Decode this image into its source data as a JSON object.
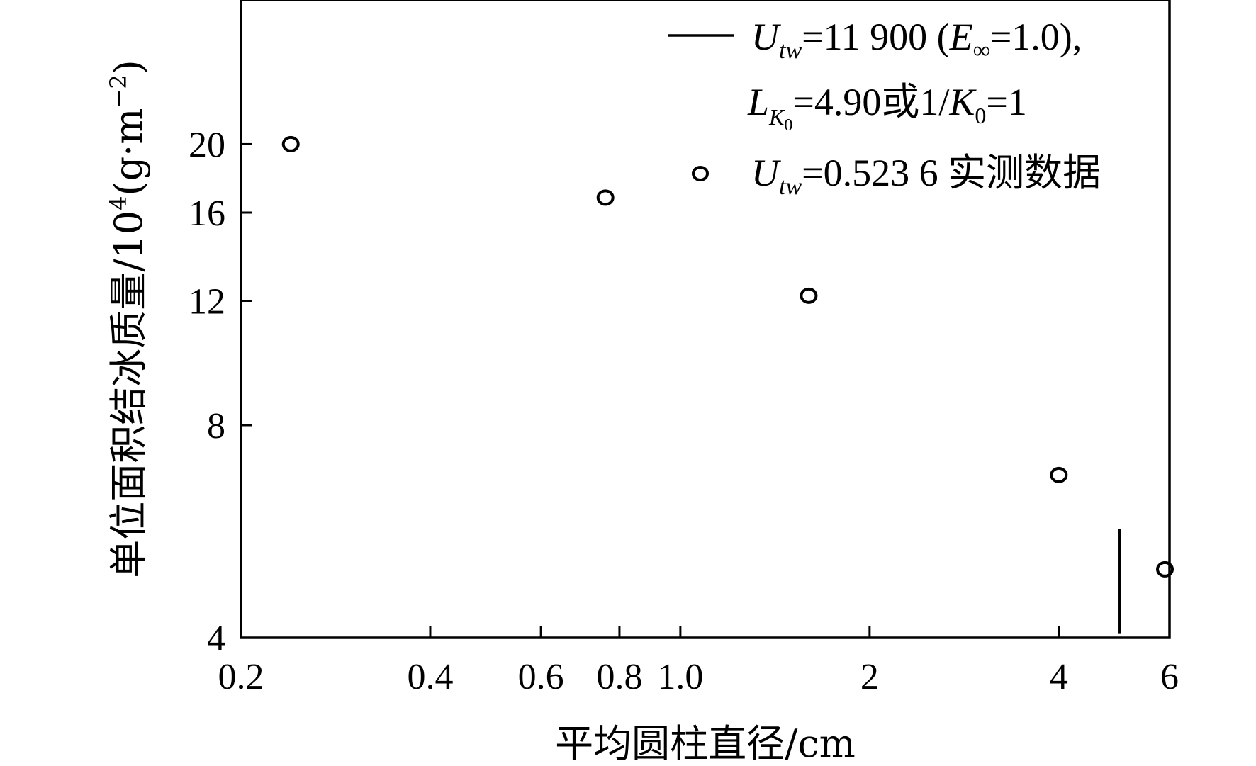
{
  "chart_data": {
    "type": "scatter",
    "x_scale": "log",
    "y_scale": "log",
    "xlim": [
      0.2,
      6
    ],
    "ylim": [
      4,
      32
    ],
    "xlabel": "平均圆柱直径/cm",
    "ylabel_main": "单位面积结冰质量/10",
    "ylabel_exp": "4",
    "ylabel_unit": "(g·m",
    "ylabel_unit_exp": "−2",
    "ylabel_close": ")",
    "x_ticks": [
      {
        "value": 0.2,
        "label": "0.2"
      },
      {
        "value": 0.4,
        "label": "0.4"
      },
      {
        "value": 0.6,
        "label": "0.6"
      },
      {
        "value": 0.8,
        "label": "0.8"
      },
      {
        "value": 1.0,
        "label": "1.0"
      },
      {
        "value": 2,
        "label": "2"
      },
      {
        "value": 4,
        "label": "4"
      },
      {
        "value": 6,
        "label": "6"
      }
    ],
    "y_ticks": [
      {
        "value": 4,
        "label": "4"
      },
      {
        "value": 8,
        "label": "8"
      },
      {
        "value": 12,
        "label": "12"
      },
      {
        "value": 16,
        "label": "16"
      },
      {
        "value": 20,
        "label": "20"
      }
    ],
    "series": [
      {
        "kind": "line",
        "color": "#000000",
        "points": [
          [
            5.0,
            4.05
          ],
          [
            5.0,
            5.7
          ]
        ]
      },
      {
        "kind": "markers",
        "marker": "open-circle",
        "color": "#000000",
        "points": [
          [
            0.24,
            20.0
          ],
          [
            0.76,
            16.8
          ],
          [
            1.6,
            12.2
          ],
          [
            4.0,
            6.8
          ],
          [
            5.9,
            5.0
          ]
        ]
      }
    ],
    "legend": {
      "placement": "top-right",
      "entries": [
        {
          "symbol": "line",
          "line1": {
            "U": "U",
            "sub": "tw",
            "rest": "=11 900 (",
            "E": "E",
            "Esub": "∞",
            "tail": "=1.0),"
          },
          "line2": {
            "L": "L",
            "Lsub": "K",
            "Lsubsub": "0",
            "mid": "=4.90或1/",
            "K": "K",
            "Ksub": "0",
            "tail": "=1"
          }
        },
        {
          "symbol": "open-circle",
          "line1": {
            "U": "U",
            "sub": "tw",
            "rest": "=0.523 6 实测数据"
          }
        }
      ]
    },
    "grid": false
  }
}
